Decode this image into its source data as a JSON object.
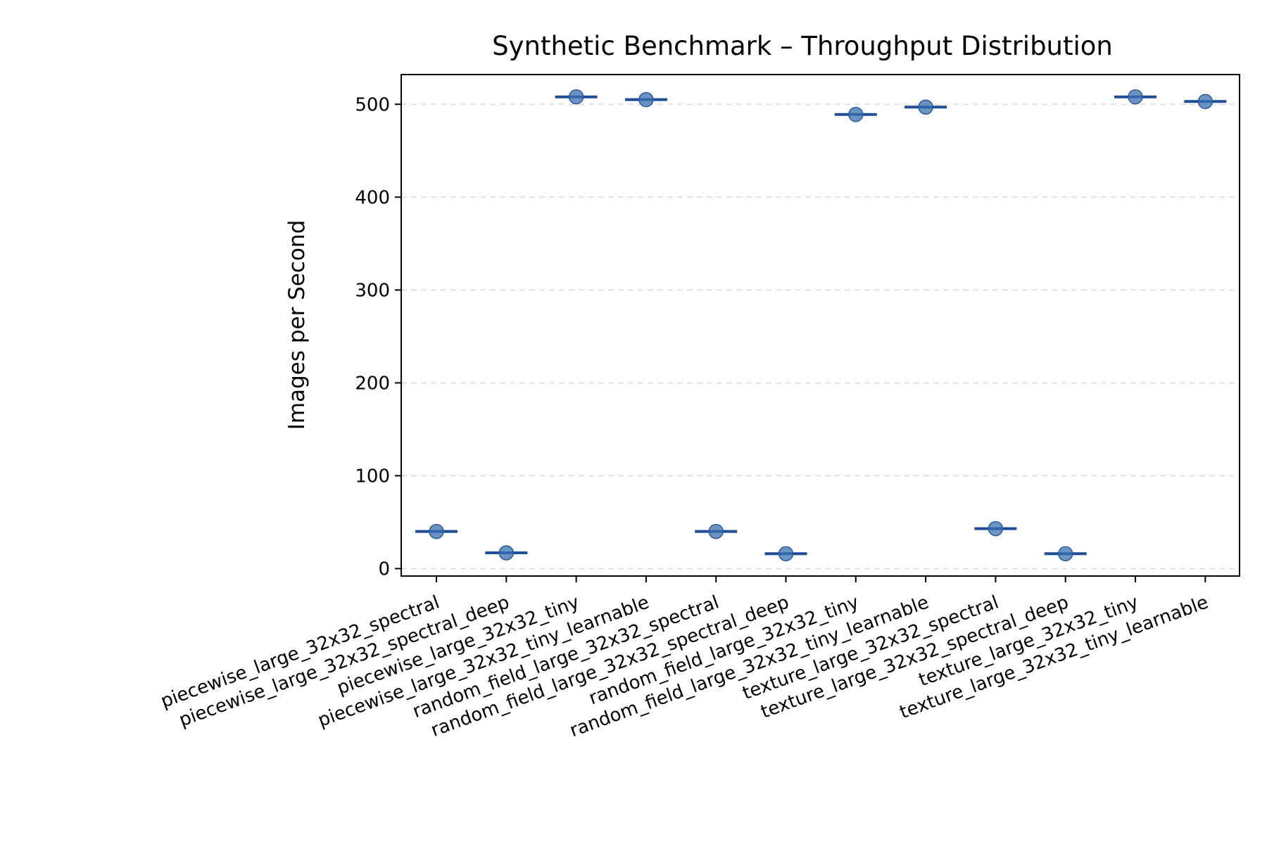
{
  "chart_data": {
    "type": "scatter",
    "title": "Synthetic Benchmark – Throughput Distribution",
    "xlabel": "",
    "ylabel": "Images per Second",
    "ylim": [
      -8,
      532
    ],
    "yticks": [
      0,
      100,
      200,
      300,
      400,
      500
    ],
    "grid": "y-dashed",
    "categories": [
      "piecewise_large_32x32_spectral",
      "piecewise_large_32x32_spectral_deep",
      "piecewise_large_32x32_tiny",
      "piecewise_large_32x32_tiny_learnable",
      "random_field_large_32x32_spectral",
      "random_field_large_32x32_spectral_deep",
      "random_field_large_32x32_tiny",
      "random_field_large_32x32_tiny_learnable",
      "texture_large_32x32_spectral",
      "texture_large_32x32_spectral_deep",
      "texture_large_32x32_tiny",
      "texture_large_32x32_tiny_learnable"
    ],
    "values": [
      40,
      17,
      508,
      505,
      40,
      16,
      489,
      497,
      43,
      16,
      508,
      503
    ],
    "medians": [
      40,
      17,
      508,
      505,
      40,
      16,
      489,
      497,
      43,
      16,
      508,
      503
    ],
    "colors": {
      "point": "#3a6fb0",
      "median": "#1f4e96",
      "grid": "#d9d9d9"
    }
  }
}
